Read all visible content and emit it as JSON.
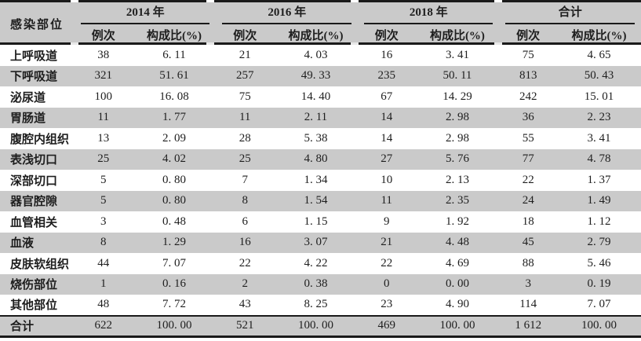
{
  "table": {
    "corner_header": "感染部位",
    "groups": [
      {
        "label": "2014 年",
        "sub": [
          "例次",
          "构成比(%)"
        ]
      },
      {
        "label": "2016 年",
        "sub": [
          "例次",
          "构成比(%)"
        ]
      },
      {
        "label": "2018 年",
        "sub": [
          "例次",
          "构成比(%)"
        ]
      },
      {
        "label": "合计",
        "sub": [
          "例次",
          "构成比(%)"
        ]
      }
    ],
    "rows": [
      {
        "label": "上呼吸道",
        "values": [
          "38",
          "6. 11",
          "21",
          "4. 03",
          "16",
          "3. 41",
          "75",
          "4. 65"
        ]
      },
      {
        "label": "下呼吸道",
        "values": [
          "321",
          "51. 61",
          "257",
          "49. 33",
          "235",
          "50. 11",
          "813",
          "50. 43"
        ]
      },
      {
        "label": "泌尿道",
        "values": [
          "100",
          "16. 08",
          "75",
          "14. 40",
          "67",
          "14. 29",
          "242",
          "15. 01"
        ]
      },
      {
        "label": "胃肠道",
        "values": [
          "11",
          "1. 77",
          "11",
          "2. 11",
          "14",
          "2. 98",
          "36",
          "2. 23"
        ]
      },
      {
        "label": "腹腔内组织",
        "values": [
          "13",
          "2. 09",
          "28",
          "5. 38",
          "14",
          "2. 98",
          "55",
          "3. 41"
        ]
      },
      {
        "label": "表浅切口",
        "values": [
          "25",
          "4. 02",
          "25",
          "4. 80",
          "27",
          "5. 76",
          "77",
          "4. 78"
        ]
      },
      {
        "label": "深部切口",
        "values": [
          "5",
          "0. 80",
          "7",
          "1. 34",
          "10",
          "2. 13",
          "22",
          "1. 37"
        ]
      },
      {
        "label": "器官腔隙",
        "values": [
          "5",
          "0. 80",
          "8",
          "1. 54",
          "11",
          "2. 35",
          "24",
          "1. 49"
        ]
      },
      {
        "label": "血管相关",
        "values": [
          "3",
          "0. 48",
          "6",
          "1. 15",
          "9",
          "1. 92",
          "18",
          "1. 12"
        ]
      },
      {
        "label": "血液",
        "values": [
          "8",
          "1. 29",
          "16",
          "3. 07",
          "21",
          "4. 48",
          "45",
          "2. 79"
        ]
      },
      {
        "label": "皮肤软组织",
        "values": [
          "44",
          "7. 07",
          "22",
          "4. 22",
          "22",
          "4. 69",
          "88",
          "5. 46"
        ]
      },
      {
        "label": "烧伤部位",
        "values": [
          "1",
          "0. 16",
          "2",
          "0. 38",
          "0",
          "0. 00",
          "3",
          "0. 19"
        ]
      },
      {
        "label": "其他部位",
        "values": [
          "48",
          "7. 72",
          "43",
          "8. 25",
          "23",
          "4. 90",
          "114",
          "7. 07"
        ]
      }
    ],
    "total_row": {
      "label": "合计",
      "values": [
        "622",
        "100. 00",
        "521",
        "100. 00",
        "469",
        "100. 00",
        "1 612",
        "100. 00"
      ]
    },
    "colors": {
      "header_bg": "#cacaca",
      "stripe_bg": "#cacaca",
      "rule": "#1a1a1a",
      "text": "#1e1e1e"
    }
  }
}
